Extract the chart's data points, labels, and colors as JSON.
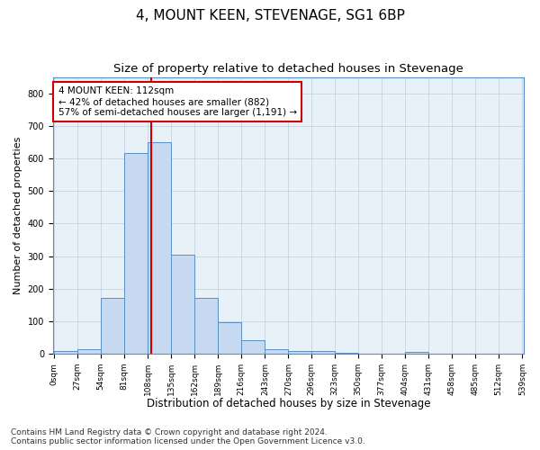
{
  "title": "4, MOUNT KEEN, STEVENAGE, SG1 6BP",
  "subtitle": "Size of property relative to detached houses in Stevenage",
  "xlabel": "Distribution of detached houses by size in Stevenage",
  "ylabel": "Number of detached properties",
  "property_size": 112,
  "bin_width": 27,
  "bin_starts": [
    0,
    27,
    54,
    81,
    108,
    135,
    162,
    189,
    216,
    243,
    270,
    296,
    323,
    350,
    377,
    404,
    431,
    458,
    485,
    512
  ],
  "bar_heights": [
    8,
    14,
    172,
    617,
    650,
    305,
    172,
    97,
    42,
    15,
    10,
    8,
    4,
    0,
    0,
    5,
    0,
    0,
    0,
    0
  ],
  "bar_color": "#c6d9f0",
  "bar_edge_color": "#5a8fc3",
  "red_line_color": "#cc0000",
  "annotation_box_color": "#cc0000",
  "annotation_text": "4 MOUNT KEEN: 112sqm\n← 42% of detached houses are smaller (882)\n57% of semi-detached houses are larger (1,191) →",
  "ylim": [
    0,
    850
  ],
  "yticks": [
    0,
    100,
    200,
    300,
    400,
    500,
    600,
    700,
    800
  ],
  "grid_color": "#c0cedf",
  "background_color": "#e8f0f8",
  "footer_line1": "Contains HM Land Registry data © Crown copyright and database right 2024.",
  "footer_line2": "Contains public sector information licensed under the Open Government Licence v3.0.",
  "title_fontsize": 11,
  "subtitle_fontsize": 9.5,
  "annotation_fontsize": 7.5,
  "footer_fontsize": 6.5,
  "xlabel_fontsize": 8.5,
  "ylabel_fontsize": 8
}
